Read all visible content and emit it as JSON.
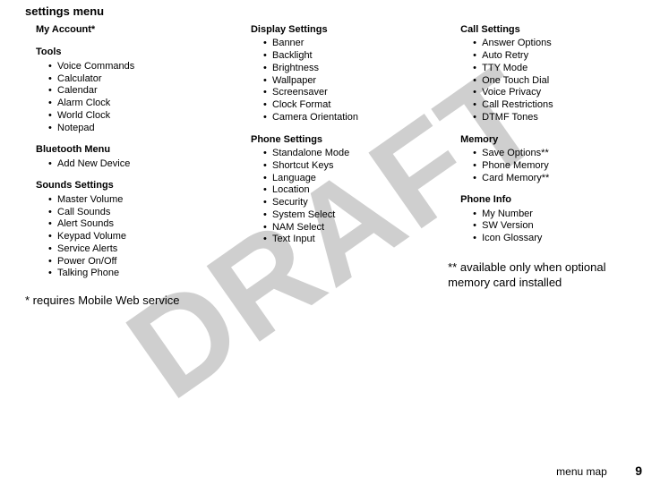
{
  "watermark_text": "DRAFT",
  "page_title": "settings menu",
  "footer": {
    "label": "menu map",
    "page_number": "9"
  },
  "col1": {
    "my_account": {
      "head": "My Account*"
    },
    "tools": {
      "head": "Tools",
      "items": [
        "Voice Commands",
        "Calculator",
        "Calendar",
        "Alarm Clock",
        "World Clock",
        "Notepad"
      ]
    },
    "bluetooth": {
      "head": "Bluetooth Menu",
      "items": [
        "Add New Device"
      ]
    },
    "sounds": {
      "head": "Sounds Settings",
      "items": [
        "Master Volume",
        "Call Sounds",
        "Alert Sounds",
        "Keypad Volume",
        "Service Alerts",
        "Power On/Off",
        "Talking Phone"
      ]
    },
    "note": "* requires Mobile Web service"
  },
  "col2": {
    "display": {
      "head": "Display Settings",
      "items": [
        "Banner",
        "Backlight",
        "Brightness",
        "Wallpaper",
        "Screensaver",
        "Clock Format",
        "Camera Orientation"
      ]
    },
    "phone": {
      "head": "Phone Settings",
      "items": [
        "Standalone Mode",
        "Shortcut Keys",
        "Language",
        "Location",
        "Security",
        "System Select",
        "NAM Select",
        "Text Input"
      ]
    }
  },
  "col3": {
    "call": {
      "head": "Call Settings",
      "items": [
        "Answer Options",
        "Auto Retry",
        "TTY Mode",
        "One Touch Dial",
        "Voice Privacy",
        "Call Restrictions",
        "DTMF Tones"
      ]
    },
    "memory": {
      "head": "Memory",
      "items": [
        "Save Options**",
        "Phone Memory",
        "Card Memory**"
      ]
    },
    "info": {
      "head": "Phone Info",
      "items": [
        "My Number",
        "SW Version",
        "Icon Glossary"
      ]
    },
    "note": "** available only when optional memory card installed"
  }
}
